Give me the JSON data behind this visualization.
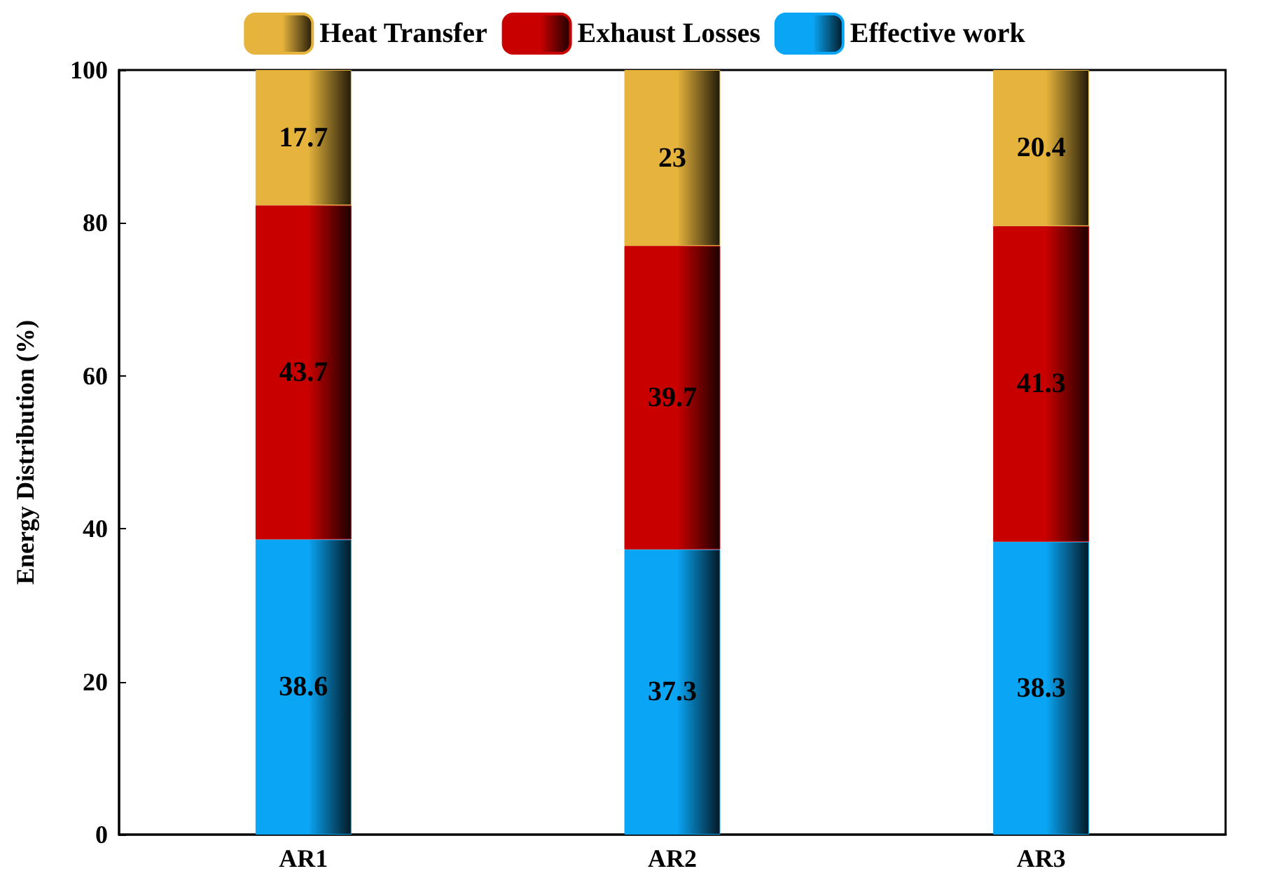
{
  "chart_data": {
    "type": "bar",
    "stacked": true,
    "ylabel": "Energy Distribution (%)",
    "categories": [
      "AR1",
      "AR2",
      "AR3"
    ],
    "series": [
      {
        "name": "Effective work",
        "color": "#0aa6f5",
        "values": [
          38.6,
          37.3,
          38.3
        ]
      },
      {
        "name": "Exhaust Losses",
        "color": "#c80000",
        "values": [
          43.7,
          39.7,
          41.3
        ]
      },
      {
        "name": "Heat Transfer",
        "color": "#e6b43c",
        "values": [
          17.7,
          23,
          20.4
        ]
      }
    ],
    "ylim": [
      0,
      100
    ],
    "yticks": [
      0,
      20,
      40,
      60,
      80,
      100
    ],
    "grid": false,
    "legend": "top",
    "data_labels": true
  }
}
